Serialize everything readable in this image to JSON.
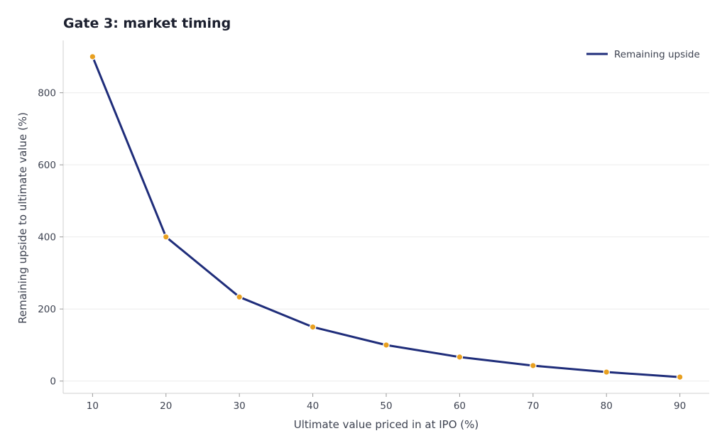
{
  "chart_data": {
    "type": "line",
    "title": "Gate 3: market timing",
    "xlabel": "Ultimate value priced in at IPO (%)",
    "ylabel": "Remaining upside to ultimate value (%)",
    "x": [
      10,
      20,
      30,
      40,
      50,
      60,
      70,
      80,
      90
    ],
    "series": [
      {
        "name": "Remaining upside",
        "values": [
          900,
          400,
          233.3,
          150,
          100,
          66.7,
          42.9,
          25,
          11.1
        ],
        "color": "#1f2d7a",
        "marker_color": "#e8a020"
      }
    ],
    "xlim": [
      6,
      94
    ],
    "ylim": [
      -34,
      945
    ],
    "xticks": [
      10,
      20,
      30,
      40,
      50,
      60,
      70,
      80,
      90
    ],
    "yticks": [
      0,
      200,
      400,
      600,
      800
    ],
    "grid": "horizontal",
    "legend": "top-right"
  }
}
